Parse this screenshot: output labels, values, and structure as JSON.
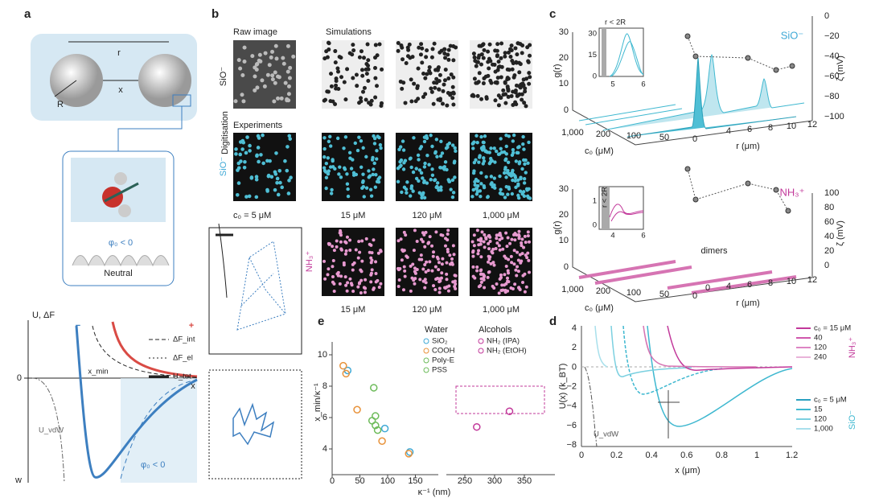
{
  "panel_a": {
    "label": "a",
    "r": "r",
    "x": "x",
    "R": "R",
    "phi": "φ₀ < 0",
    "neutral": "Neutral",
    "y_axis": "U, ΔF",
    "zero": "0",
    "w": "w",
    "x_axis": "x",
    "x_min": "x_min",
    "u_vdw": "U_vdW",
    "phi2": "φ₀ < 0",
    "minus": "−",
    "plus": "+",
    "legend": [
      "ΔF_int",
      "ΔF_el",
      "U_tot"
    ]
  },
  "panel_b": {
    "label": "b",
    "raw": "Raw image",
    "sim": "Simulations",
    "digit": "Digitisation",
    "exp": "Experiments",
    "sio": "SiO⁻",
    "sio2": "SiO⁻",
    "nh3": "NH₃⁺",
    "c0": "c₀ = 5 μM",
    "row2": [
      "15 μM",
      "120 μM",
      "1,000 μM"
    ],
    "row3": [
      "15 μM",
      "120 μM",
      "1,000 μM"
    ]
  },
  "panel_c": {
    "label": "c",
    "top": {
      "ylabel": "g(r)",
      "yticks": [
        "30",
        "20",
        "10",
        "0"
      ],
      "inset_y": [
        "30",
        "15",
        "0"
      ],
      "inset_x": [
        "5",
        "6"
      ],
      "note": "r < 2R",
      "species": "SiO⁻",
      "zlabel": "ζ (mV)",
      "zticks": [
        "0",
        "−20",
        "−40",
        "−60",
        "−80",
        "−100"
      ],
      "c0ticks": [
        "1,000",
        "200",
        "100",
        "50",
        "0"
      ],
      "rticks": [
        "4",
        "6",
        "8",
        "10",
        "12"
      ],
      "c0label": "c₀ (μM)",
      "rlabel": "r (μm)"
    },
    "bottom": {
      "ylabel": "g(r)",
      "yticks": [
        "30",
        "20",
        "10",
        "0"
      ],
      "inset_y": [
        "1",
        "0"
      ],
      "inset_x": [
        "4",
        "6"
      ],
      "note": "r < 2R",
      "species": "NH₃⁺",
      "zlabel": "ζ (mV)",
      "zticks": [
        "100",
        "80",
        "60",
        "40",
        "20",
        "0"
      ],
      "c0ticks": [
        "1,000",
        "200",
        "100",
        "50",
        "0"
      ],
      "rticks": [
        "0",
        "4",
        "6",
        "8",
        "10",
        "12"
      ],
      "c0label": "c₀ (μM)",
      "rlabel": "r (μm)",
      "dimers": "dimers"
    }
  },
  "panel_d": {
    "label": "d",
    "ylabel": "U(x) (k_BT)",
    "xlabel": "x (μm)",
    "yticks": [
      "4",
      "2",
      "0",
      "−2",
      "−4",
      "−6",
      "−8"
    ],
    "xticks": [
      "0",
      "0.2",
      "0.4",
      "0.6",
      "0.8",
      "1",
      "1.2"
    ],
    "nh3": "NH₃⁺",
    "nh3_legend": [
      "c₀ = 15 μM",
      "40",
      "120",
      "240"
    ],
    "sio": "SiO⁻",
    "sio_legend": [
      "c₀ = 5 μM",
      "15",
      "120",
      "1,000"
    ],
    "u_vdw": "U_vdW"
  },
  "panel_e": {
    "label": "e",
    "ylabel": "x_min/κ⁻¹",
    "xlabel": "κ⁻¹ (nm)",
    "yticks": [
      10,
      8,
      6,
      4
    ],
    "xticks": [
      0,
      50,
      100,
      150,
      250,
      300,
      350
    ],
    "water": "Water",
    "alcohols": "Alcohols",
    "series": [
      {
        "name": "SiO₂",
        "color": "#3fa9d6",
        "x": [
          28,
          95,
          140
        ],
        "y": [
          9,
          5.3,
          3.8
        ]
      },
      {
        "name": "COOH",
        "color": "#e8923a",
        "x": [
          20,
          25,
          45,
          90,
          138
        ],
        "y": [
          9.3,
          8.8,
          6.5,
          4.5,
          3.7
        ]
      },
      {
        "name": "Poly-E",
        "color": "#6dbb5a",
        "x": [
          72,
          78,
          82
        ],
        "y": [
          5.8,
          5.5,
          5.2
        ]
      },
      {
        "name": "PSS",
        "color": "#6dbb5a",
        "x": [
          75,
          78
        ],
        "y": [
          7.9,
          6.1
        ]
      },
      {
        "name": "NH₂ (IPA)",
        "color": "#c2389a",
        "x": [
          270
        ],
        "y": [
          5.4
        ]
      },
      {
        "name": "NH₂ (EtOH)",
        "color": "#c2389a",
        "x": [
          325
        ],
        "y": [
          6.4
        ]
      }
    ]
  }
}
